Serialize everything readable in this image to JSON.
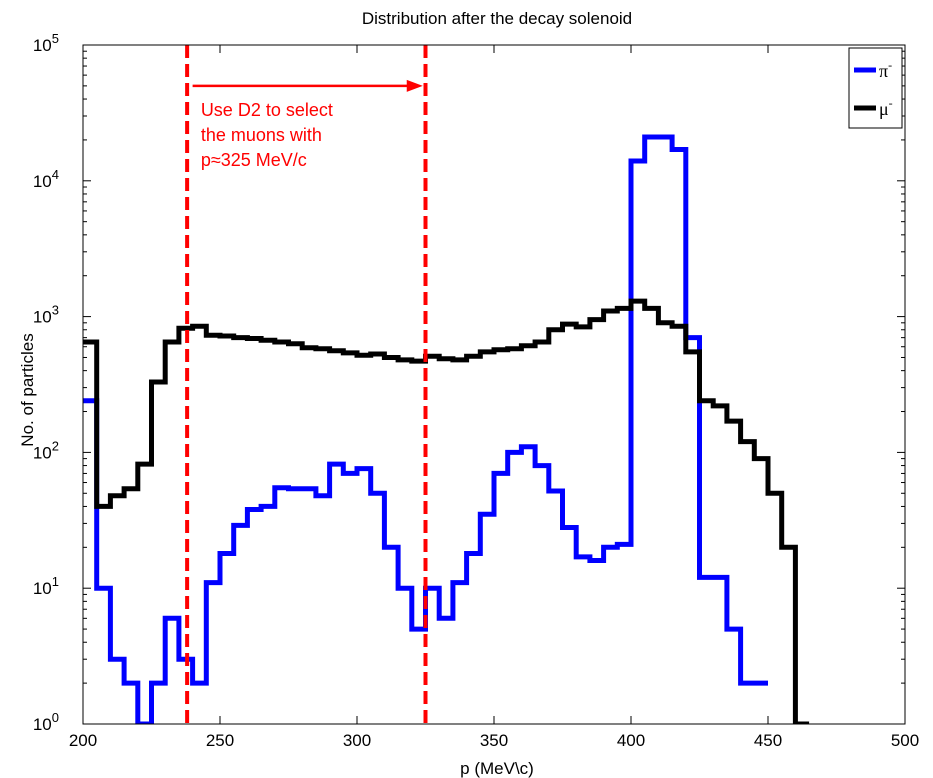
{
  "chart_data": {
    "type": "line",
    "step": true,
    "title": "Distribution after the decay solenoid",
    "xlabel": "p (MeV\\c)",
    "ylabel": "No. of particles",
    "xlim": [
      200,
      500
    ],
    "ylim": [
      1,
      100000
    ],
    "yscale": "log",
    "grid": false,
    "legend_position": "top-right",
    "x_ticks": [
      200,
      250,
      300,
      350,
      400,
      450,
      500
    ],
    "x_tick_labels": [
      "200",
      "250",
      "300",
      "350",
      "400",
      "450",
      "500"
    ],
    "y_ticks": [
      1,
      10,
      100,
      1000,
      10000,
      100000
    ],
    "y_tick_base": [
      "10",
      "10",
      "10",
      "10",
      "10",
      "10"
    ],
    "y_tick_exp": [
      "0",
      "1",
      "2",
      "3",
      "4",
      "5"
    ],
    "bin_width": 5,
    "series": [
      {
        "name": "π⁻",
        "legend_base": "π",
        "legend_sup": "-",
        "color": "#0000ff",
        "bins": [
          [
            200,
            240
          ],
          [
            205,
            10
          ],
          [
            210,
            3
          ],
          [
            215,
            2
          ],
          [
            220,
            1
          ],
          [
            225,
            2
          ],
          [
            230,
            6
          ],
          [
            235,
            3
          ],
          [
            240,
            2
          ],
          [
            245,
            11
          ],
          [
            250,
            18
          ],
          [
            255,
            29
          ],
          [
            260,
            38
          ],
          [
            265,
            40
          ],
          [
            270,
            55
          ],
          [
            275,
            54
          ],
          [
            280,
            54
          ],
          [
            285,
            48
          ],
          [
            290,
            82
          ],
          [
            295,
            70
          ],
          [
            300,
            76
          ],
          [
            305,
            50
          ],
          [
            310,
            20
          ],
          [
            315,
            10
          ],
          [
            320,
            5
          ],
          [
            325,
            10
          ],
          [
            330,
            6
          ],
          [
            335,
            11
          ],
          [
            340,
            18
          ],
          [
            345,
            35
          ],
          [
            350,
            70
          ],
          [
            355,
            100
          ],
          [
            360,
            110
          ],
          [
            365,
            80
          ],
          [
            370,
            52
          ],
          [
            375,
            28
          ],
          [
            380,
            17
          ],
          [
            385,
            16
          ],
          [
            390,
            20
          ],
          [
            395,
            21
          ],
          [
            400,
            14000
          ],
          [
            405,
            21000
          ],
          [
            410,
            21000
          ],
          [
            415,
            17000
          ],
          [
            420,
            700
          ],
          [
            425,
            12
          ],
          [
            430,
            12
          ],
          [
            435,
            5
          ],
          [
            440,
            2
          ],
          [
            445,
            2
          ]
        ]
      },
      {
        "name": "μ⁻",
        "legend_base": "μ",
        "legend_sup": "-",
        "color": "#000000",
        "bins": [
          [
            200,
            650
          ],
          [
            205,
            40
          ],
          [
            210,
            48
          ],
          [
            215,
            54
          ],
          [
            220,
            82
          ],
          [
            225,
            330
          ],
          [
            230,
            650
          ],
          [
            235,
            820
          ],
          [
            240,
            850
          ],
          [
            245,
            730
          ],
          [
            250,
            720
          ],
          [
            255,
            700
          ],
          [
            260,
            690
          ],
          [
            265,
            670
          ],
          [
            270,
            650
          ],
          [
            275,
            630
          ],
          [
            280,
            590
          ],
          [
            285,
            580
          ],
          [
            290,
            560
          ],
          [
            295,
            540
          ],
          [
            300,
            520
          ],
          [
            305,
            530
          ],
          [
            310,
            500
          ],
          [
            315,
            480
          ],
          [
            320,
            470
          ],
          [
            325,
            510
          ],
          [
            330,
            490
          ],
          [
            335,
            480
          ],
          [
            340,
            510
          ],
          [
            345,
            550
          ],
          [
            350,
            570
          ],
          [
            355,
            580
          ],
          [
            360,
            610
          ],
          [
            365,
            650
          ],
          [
            370,
            800
          ],
          [
            375,
            880
          ],
          [
            380,
            840
          ],
          [
            385,
            950
          ],
          [
            390,
            1100
          ],
          [
            395,
            1150
          ],
          [
            400,
            1300
          ],
          [
            405,
            1150
          ],
          [
            410,
            900
          ],
          [
            415,
            850
          ],
          [
            420,
            550
          ],
          [
            425,
            240
          ],
          [
            430,
            220
          ],
          [
            435,
            170
          ],
          [
            440,
            120
          ],
          [
            445,
            90
          ],
          [
            450,
            50
          ],
          [
            455,
            20
          ],
          [
            460,
            1
          ]
        ]
      }
    ],
    "vlines": [
      {
        "x": 238,
        "color": "#ff0000",
        "style": "dashed"
      },
      {
        "x": 325,
        "color": "#ff0000",
        "style": "dashed"
      }
    ],
    "arrow": {
      "x_from": 240,
      "x_to": 324,
      "y": 50000,
      "color": "#ff0000"
    },
    "annotation": {
      "lines": [
        "Use D2 to select",
        "the muons with",
        "p≈325 MeV/c"
      ],
      "color": "#ff0000",
      "x": 243,
      "y": 30000
    }
  }
}
